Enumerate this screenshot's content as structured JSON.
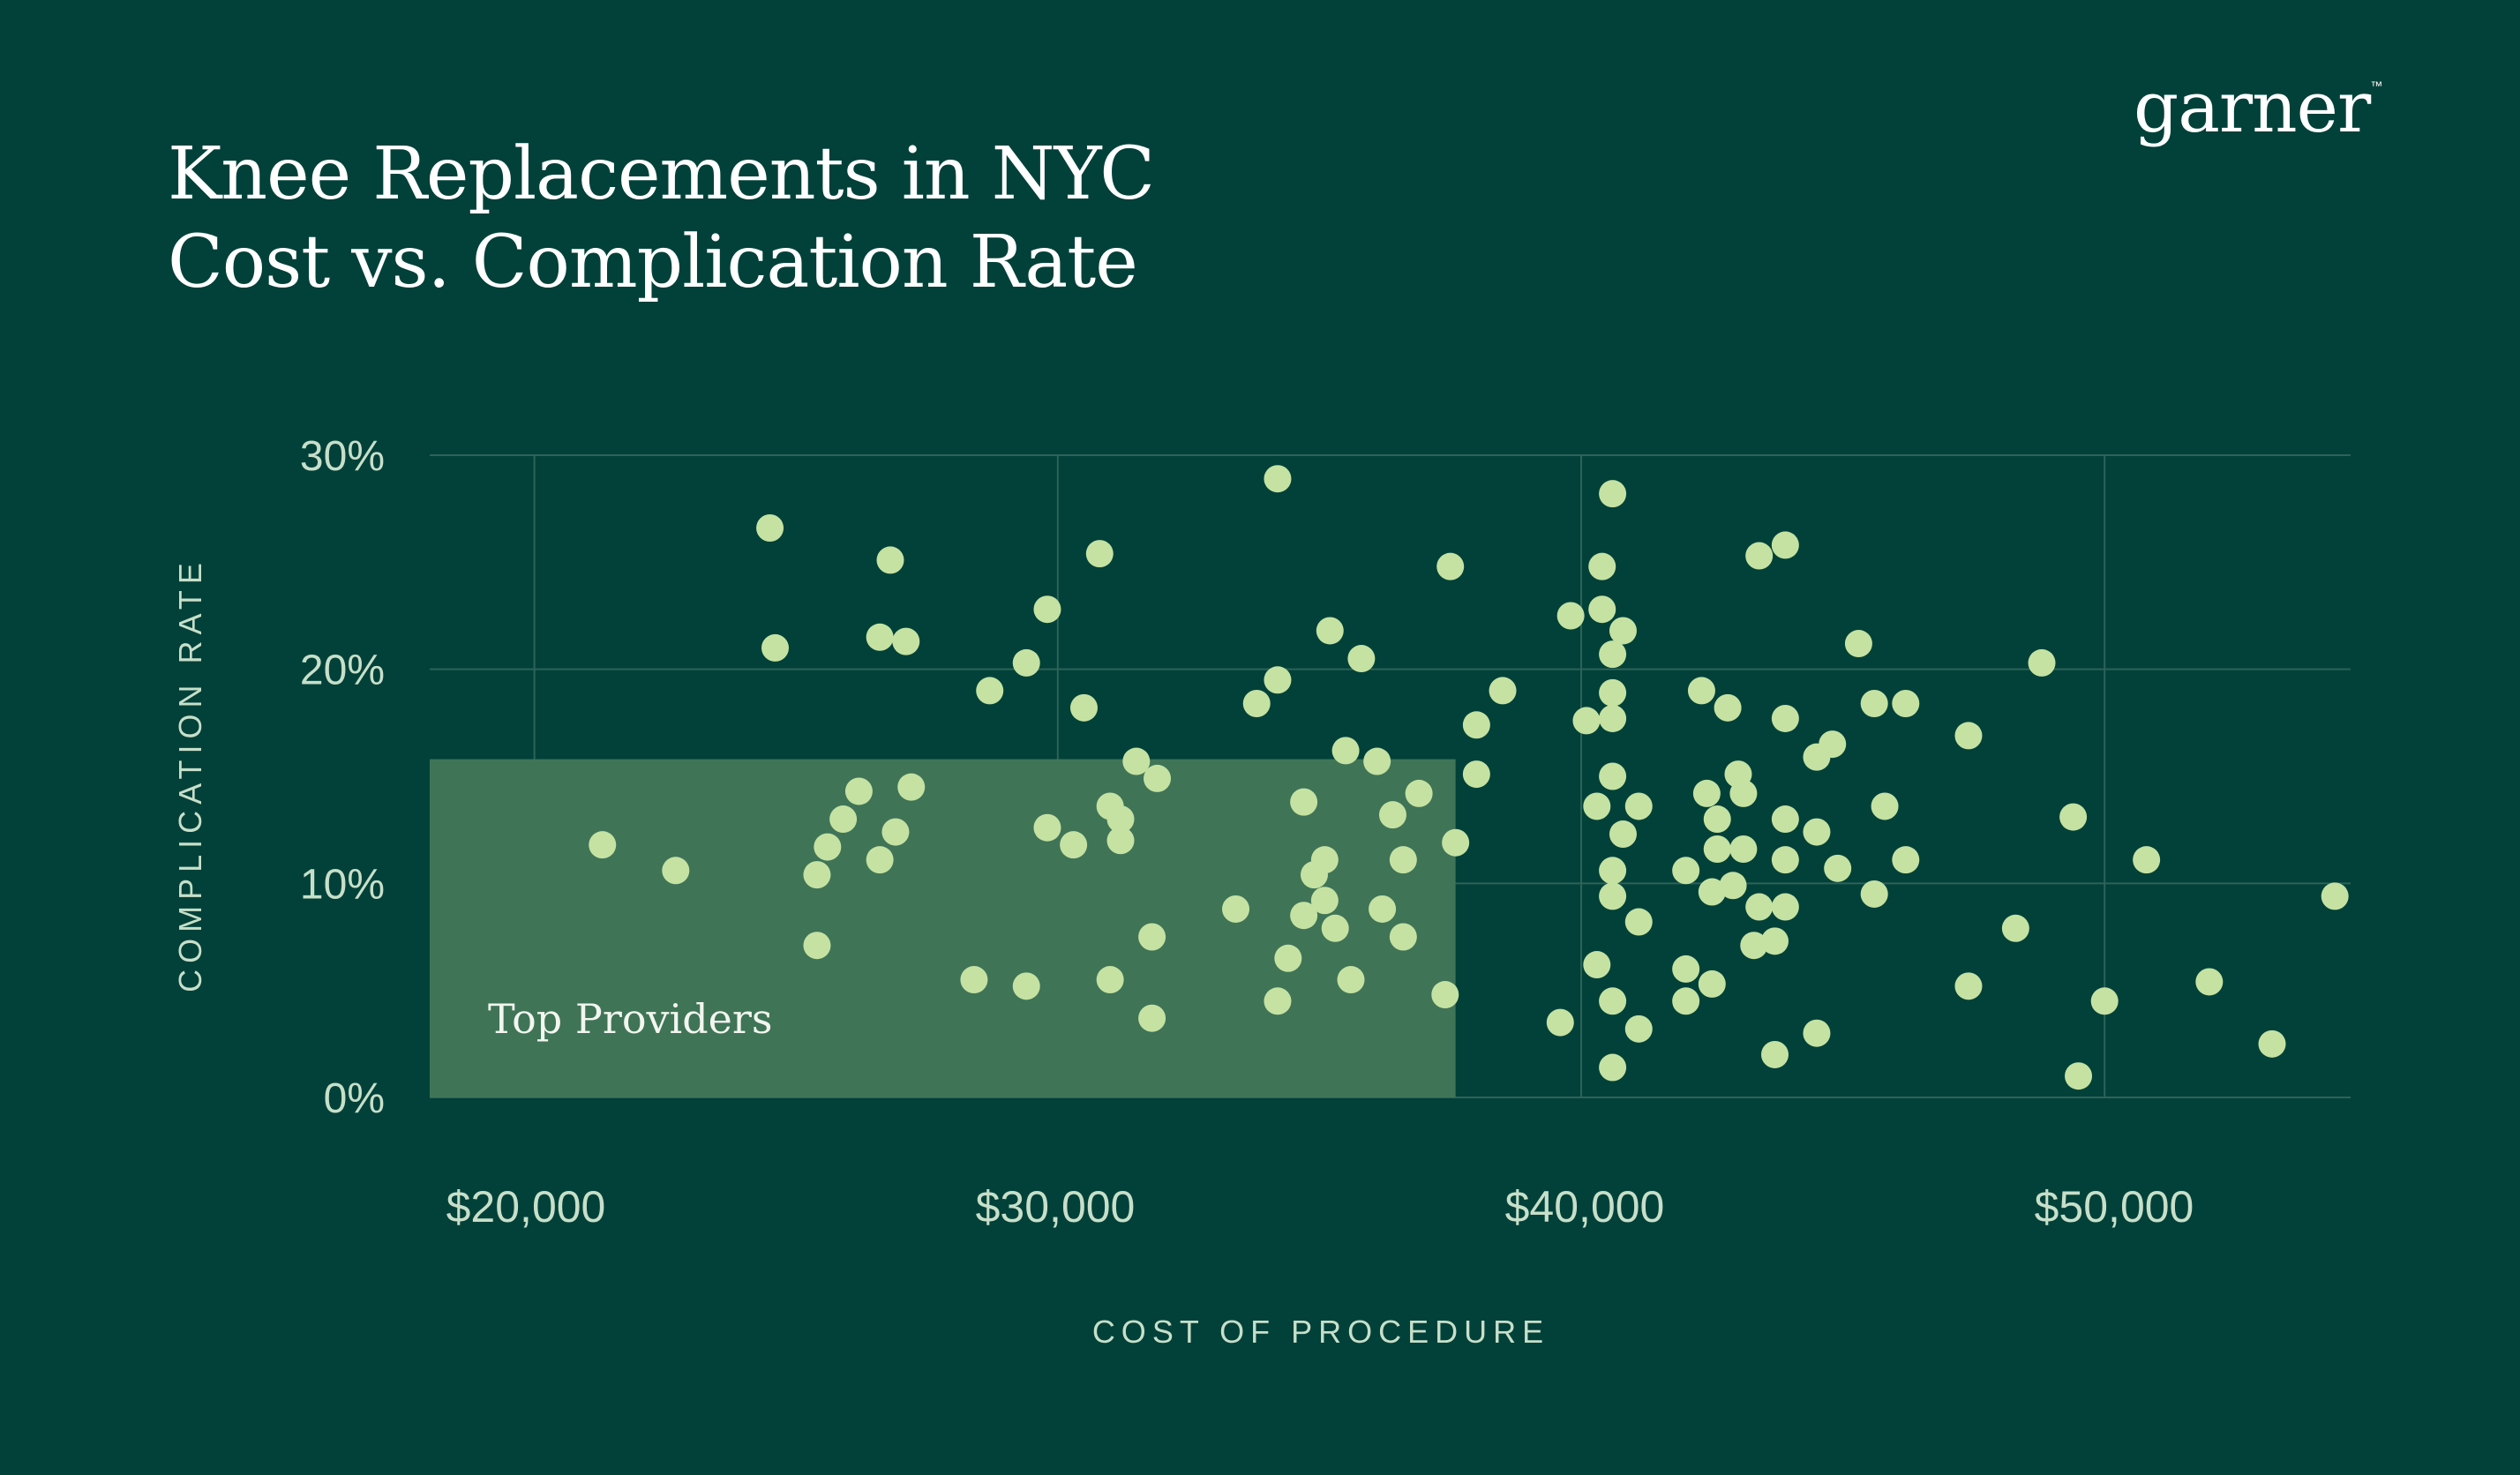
{
  "title": {
    "line1": "Knee Replacements in NYC",
    "line2": "Cost vs. Complication Rate"
  },
  "logo": {
    "text": "garner",
    "tm": "™"
  },
  "colors": {
    "background": "#014139",
    "point": "#c5e2a2",
    "region": "#3f7457",
    "grid": "#2f6258",
    "text": "#c7dfc9"
  },
  "chart_data": {
    "type": "scatter",
    "xlabel": "COST OF PROCEDURE",
    "ylabel": "COMPLICATION RATE",
    "xlim": [
      18000,
      54700
    ],
    "ylim": [
      0,
      30
    ],
    "x_ticks": [
      20000,
      30000,
      40000,
      50000
    ],
    "x_tick_labels": [
      "$20,000",
      "$30,000",
      "$40,000",
      "$50,000"
    ],
    "y_ticks": [
      0,
      10,
      20,
      30
    ],
    "y_tick_labels": [
      "0%",
      "10%",
      "20%",
      "30%"
    ],
    "grid": true,
    "region": {
      "label": "Top Providers",
      "x": [
        18000,
        37600
      ],
      "y": [
        0,
        15.8
      ]
    },
    "points": [
      {
        "x": 21300,
        "y": 11.8
      },
      {
        "x": 22700,
        "y": 10.6
      },
      {
        "x": 24500,
        "y": 26.6
      },
      {
        "x": 24600,
        "y": 21.0
      },
      {
        "x": 25400,
        "y": 7.1
      },
      {
        "x": 25400,
        "y": 10.4
      },
      {
        "x": 25600,
        "y": 11.7
      },
      {
        "x": 25900,
        "y": 13.0
      },
      {
        "x": 26200,
        "y": 14.3
      },
      {
        "x": 26600,
        "y": 21.5
      },
      {
        "x": 26600,
        "y": 11.1
      },
      {
        "x": 26800,
        "y": 25.1
      },
      {
        "x": 26900,
        "y": 12.4
      },
      {
        "x": 27100,
        "y": 21.3
      },
      {
        "x": 27200,
        "y": 14.5
      },
      {
        "x": 28400,
        "y": 5.5
      },
      {
        "x": 28700,
        "y": 19.0
      },
      {
        "x": 29400,
        "y": 5.2
      },
      {
        "x": 29400,
        "y": 20.3
      },
      {
        "x": 29800,
        "y": 22.8
      },
      {
        "x": 29800,
        "y": 12.6
      },
      {
        "x": 30300,
        "y": 11.8
      },
      {
        "x": 30500,
        "y": 18.2
      },
      {
        "x": 30800,
        "y": 25.4
      },
      {
        "x": 31000,
        "y": 13.6
      },
      {
        "x": 31000,
        "y": 5.5
      },
      {
        "x": 31200,
        "y": 13.0
      },
      {
        "x": 31200,
        "y": 12.0
      },
      {
        "x": 31500,
        "y": 15.7
      },
      {
        "x": 31800,
        "y": 7.5
      },
      {
        "x": 31800,
        "y": 3.7
      },
      {
        "x": 31900,
        "y": 14.9
      },
      {
        "x": 33400,
        "y": 8.8
      },
      {
        "x": 33800,
        "y": 18.4
      },
      {
        "x": 34200,
        "y": 19.5
      },
      {
        "x": 34200,
        "y": 4.5
      },
      {
        "x": 34200,
        "y": 28.9
      },
      {
        "x": 34400,
        "y": 6.5
      },
      {
        "x": 34700,
        "y": 13.8
      },
      {
        "x": 34700,
        "y": 8.5
      },
      {
        "x": 34900,
        "y": 10.4
      },
      {
        "x": 35100,
        "y": 11.1
      },
      {
        "x": 35200,
        "y": 21.8
      },
      {
        "x": 35100,
        "y": 9.2
      },
      {
        "x": 35300,
        "y": 7.9
      },
      {
        "x": 35500,
        "y": 16.2
      },
      {
        "x": 35600,
        "y": 5.5
      },
      {
        "x": 35800,
        "y": 20.5
      },
      {
        "x": 36100,
        "y": 15.7
      },
      {
        "x": 36200,
        "y": 8.8
      },
      {
        "x": 36400,
        "y": 13.2
      },
      {
        "x": 36600,
        "y": 11.1
      },
      {
        "x": 36600,
        "y": 7.5
      },
      {
        "x": 36900,
        "y": 14.2
      },
      {
        "x": 37400,
        "y": 4.8
      },
      {
        "x": 37500,
        "y": 24.8
      },
      {
        "x": 37600,
        "y": 11.9
      },
      {
        "x": 38000,
        "y": 17.4
      },
      {
        "x": 38000,
        "y": 15.1
      },
      {
        "x": 38500,
        "y": 19.0
      },
      {
        "x": 39600,
        "y": 3.5
      },
      {
        "x": 39800,
        "y": 22.5
      },
      {
        "x": 40100,
        "y": 17.6
      },
      {
        "x": 40300,
        "y": 13.6
      },
      {
        "x": 40300,
        "y": 6.2
      },
      {
        "x": 40400,
        "y": 24.8
      },
      {
        "x": 40400,
        "y": 22.8
      },
      {
        "x": 40600,
        "y": 28.2
      },
      {
        "x": 40600,
        "y": 20.7
      },
      {
        "x": 40600,
        "y": 18.9
      },
      {
        "x": 40600,
        "y": 17.7
      },
      {
        "x": 40600,
        "y": 15.0
      },
      {
        "x": 40600,
        "y": 10.6
      },
      {
        "x": 40600,
        "y": 9.4
      },
      {
        "x": 40600,
        "y": 4.5
      },
      {
        "x": 40600,
        "y": 1.4
      },
      {
        "x": 40800,
        "y": 21.8
      },
      {
        "x": 40800,
        "y": 12.3
      },
      {
        "x": 41100,
        "y": 13.6
      },
      {
        "x": 41100,
        "y": 8.2
      },
      {
        "x": 41100,
        "y": 3.2
      },
      {
        "x": 42000,
        "y": 10.6
      },
      {
        "x": 42000,
        "y": 6.0
      },
      {
        "x": 42000,
        "y": 4.5
      },
      {
        "x": 42300,
        "y": 19.0
      },
      {
        "x": 42400,
        "y": 14.2
      },
      {
        "x": 42500,
        "y": 9.6
      },
      {
        "x": 42500,
        "y": 5.3
      },
      {
        "x": 42600,
        "y": 13.0
      },
      {
        "x": 42600,
        "y": 11.6
      },
      {
        "x": 42800,
        "y": 18.2
      },
      {
        "x": 42900,
        "y": 9.9
      },
      {
        "x": 43000,
        "y": 15.1
      },
      {
        "x": 43100,
        "y": 14.2
      },
      {
        "x": 43100,
        "y": 11.6
      },
      {
        "x": 43300,
        "y": 7.1
      },
      {
        "x": 43400,
        "y": 25.3
      },
      {
        "x": 43400,
        "y": 8.9
      },
      {
        "x": 43700,
        "y": 2.0
      },
      {
        "x": 43700,
        "y": 7.3
      },
      {
        "x": 43900,
        "y": 25.8
      },
      {
        "x": 43900,
        "y": 17.7
      },
      {
        "x": 43900,
        "y": 13.0
      },
      {
        "x": 43900,
        "y": 11.1
      },
      {
        "x": 43900,
        "y": 8.9
      },
      {
        "x": 44500,
        "y": 3.0
      },
      {
        "x": 44500,
        "y": 12.4
      },
      {
        "x": 44500,
        "y": 15.9
      },
      {
        "x": 44800,
        "y": 16.5
      },
      {
        "x": 44900,
        "y": 10.7
      },
      {
        "x": 45300,
        "y": 21.2
      },
      {
        "x": 45600,
        "y": 9.5
      },
      {
        "x": 45600,
        "y": 18.4
      },
      {
        "x": 45800,
        "y": 13.6
      },
      {
        "x": 46200,
        "y": 18.4
      },
      {
        "x": 46200,
        "y": 11.1
      },
      {
        "x": 47400,
        "y": 16.9
      },
      {
        "x": 47400,
        "y": 5.2
      },
      {
        "x": 48300,
        "y": 7.9
      },
      {
        "x": 48800,
        "y": 20.3
      },
      {
        "x": 49400,
        "y": 13.1
      },
      {
        "x": 49500,
        "y": 1.0
      },
      {
        "x": 50000,
        "y": 4.5
      },
      {
        "x": 50800,
        "y": 11.1
      },
      {
        "x": 52000,
        "y": 5.4
      },
      {
        "x": 53200,
        "y": 2.5
      },
      {
        "x": 54400,
        "y": 9.4
      }
    ]
  }
}
